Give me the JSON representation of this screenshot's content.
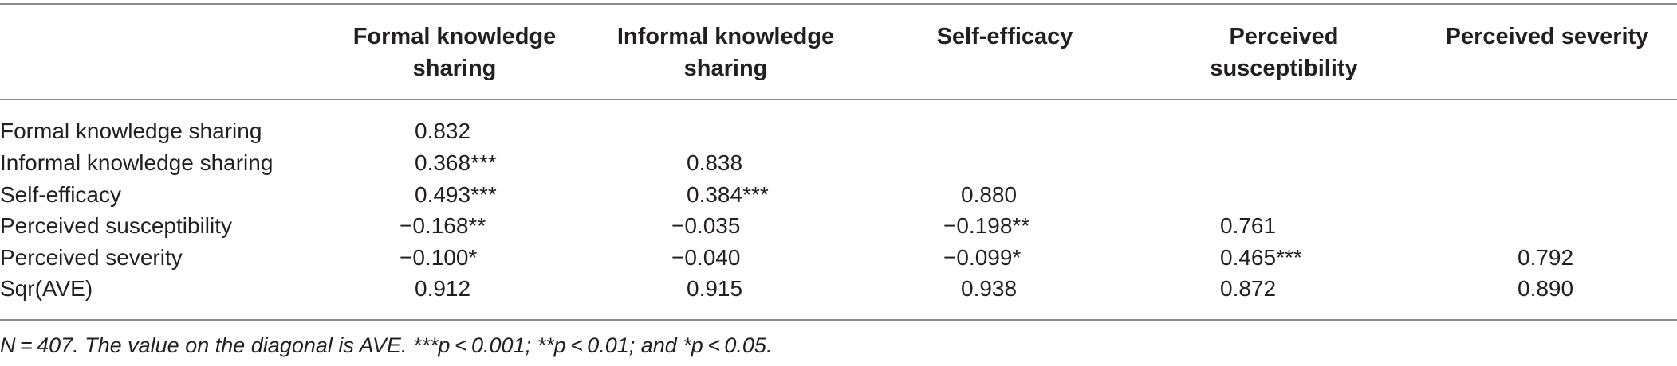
{
  "table": {
    "columns": [
      "Formal knowledge sharing",
      "Informal knowledge sharing",
      "Self-efficacy",
      "Perceived susceptibility",
      "Perceived severity"
    ],
    "rows": [
      {
        "label": "Formal knowledge sharing",
        "cells": [
          "0.832",
          "",
          "",
          "",
          ""
        ]
      },
      {
        "label": "Informal knowledge sharing",
        "cells": [
          "0.368***",
          "0.838",
          "",
          "",
          ""
        ]
      },
      {
        "label": "Self-efficacy",
        "cells": [
          "0.493***",
          "0.384***",
          "0.880",
          "",
          ""
        ]
      },
      {
        "label": "Perceived susceptibility",
        "cells": [
          "−0.168**",
          "−0.035",
          "−0.198**",
          "0.761",
          ""
        ]
      },
      {
        "label": "Perceived severity",
        "cells": [
          "−0.100*",
          "−0.040",
          "−0.099*",
          "0.465***",
          "0.792"
        ]
      },
      {
        "label": "Sqr(AVE)",
        "cells": [
          "0.912",
          "0.915",
          "0.938",
          "0.872",
          "0.890"
        ]
      }
    ],
    "note": "N = 407. The value on the diagonal is AVE. ***p < 0.001; **p < 0.01; and *p < 0.05."
  }
}
